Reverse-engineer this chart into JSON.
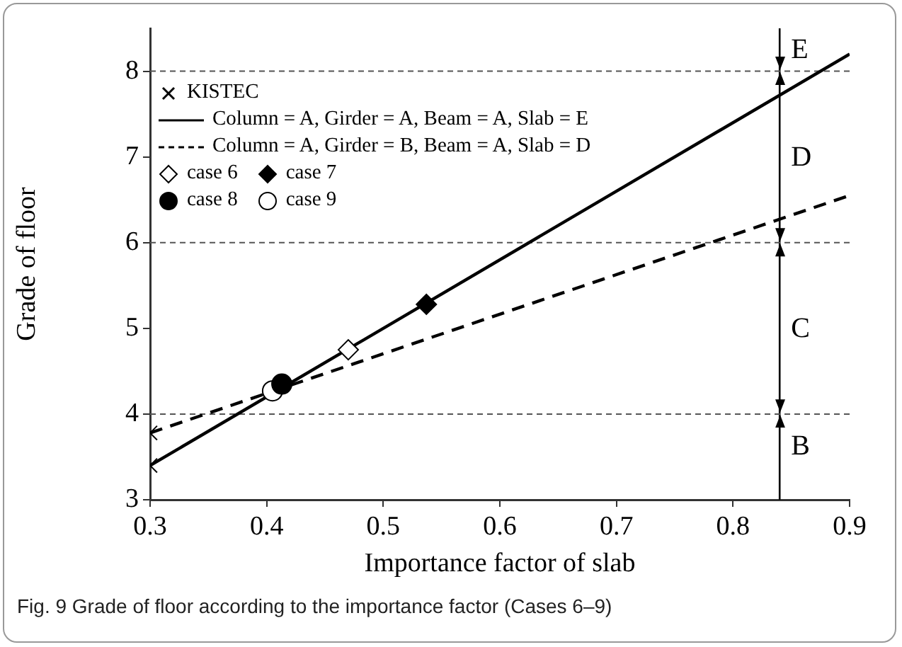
{
  "chart_data": {
    "type": "line",
    "xlabel": "Importance factor of slab",
    "ylabel": "Grade of floor",
    "xlim": [
      0.3,
      0.9
    ],
    "xticks": [
      0.3,
      0.4,
      0.5,
      0.6,
      0.7,
      0.8,
      0.9
    ],
    "ylim": [
      3,
      8.5
    ],
    "yticks": [
      3,
      4,
      5,
      6,
      7,
      8
    ],
    "grid": false,
    "legend": "top left",
    "series": [
      {
        "name": "KISTEC",
        "type": "scatter",
        "marker": "cross",
        "color": "#000000",
        "x": [
          0.3,
          0.3
        ],
        "values": [
          3.4,
          3.78
        ]
      },
      {
        "name": "Column = A, Girder = A, Beam = A, Slab = E",
        "marker": "none",
        "line_style": "solid",
        "color": "#000000",
        "x": [
          0.3,
          0.9
        ],
        "values": [
          3.4,
          8.2
        ]
      },
      {
        "name": "Column = A, Girder = B, Beam = A, Slab = D",
        "marker": "none",
        "line_style": "dashed",
        "color": "#000000",
        "x": [
          0.3,
          0.9
        ],
        "values": [
          3.78,
          6.55
        ]
      },
      {
        "name": "case 6",
        "type": "scatter",
        "marker": "diamond",
        "color": "#ffffff",
        "x": [
          0.47
        ],
        "values": [
          4.75
        ]
      },
      {
        "name": "case 7",
        "type": "scatter",
        "marker": "diamond",
        "color": "#000000",
        "x": [
          0.537
        ],
        "values": [
          5.28
        ]
      },
      {
        "name": "case 8",
        "type": "scatter",
        "marker": "circle",
        "color": "#000000",
        "x": [
          0.413
        ],
        "values": [
          4.35
        ]
      },
      {
        "name": "case 9",
        "type": "scatter",
        "marker": "circle",
        "color": "#ffffff",
        "x": [
          0.405
        ],
        "values": [
          4.27
        ]
      }
    ],
    "ref_lines": [
      {
        "axis": "x",
        "value": 0.84,
        "color": "#000000",
        "line_style": "solid"
      },
      {
        "axis": "y",
        "value": 4,
        "color": "#555555",
        "line_style": "dashed"
      },
      {
        "axis": "y",
        "value": 6,
        "color": "#555555",
        "line_style": "dashed"
      },
      {
        "axis": "y",
        "value": 8,
        "color": "#555555",
        "line_style": "dashed"
      }
    ],
    "annotations": [
      "E",
      "D",
      "C",
      "B",
      "Fig. 9 Grade of floor according to the importance factor (Cases 6–9)"
    ]
  }
}
